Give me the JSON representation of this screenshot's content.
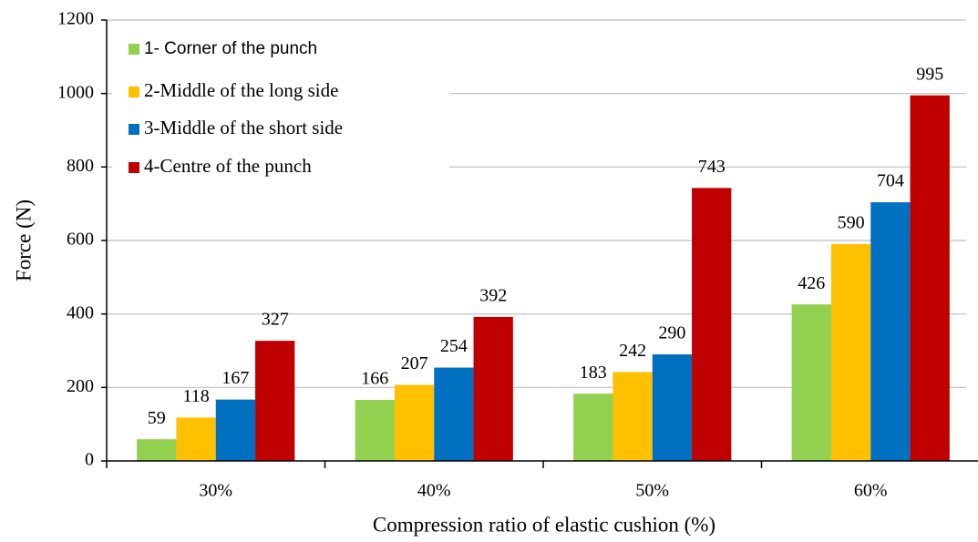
{
  "chart_data": {
    "type": "bar",
    "x_label": "Compression ratio of elastic cushion (%)",
    "y_label": "Force (N)",
    "categories": [
      "30%",
      "40%",
      "50%",
      "60%"
    ],
    "series": [
      {
        "name": "1- Corner of the punch",
        "color": "#92d050",
        "values": [
          59,
          166,
          183,
          426
        ]
      },
      {
        "name": "2-Middle of the  long side",
        "color": "#ffc000",
        "values": [
          118,
          207,
          242,
          590
        ]
      },
      {
        "name": "3-Middle of the short side",
        "color": "#0070c0",
        "values": [
          167,
          254,
          290,
          704
        ]
      },
      {
        "name": "4-Centre of the punch",
        "color": "#c00000",
        "values": [
          327,
          392,
          743,
          995
        ]
      }
    ],
    "ylim": [
      0,
      1200
    ],
    "yticks": [
      0,
      200,
      400,
      600,
      800,
      1000,
      1200
    ],
    "grid": true,
    "legend": "upper left"
  }
}
